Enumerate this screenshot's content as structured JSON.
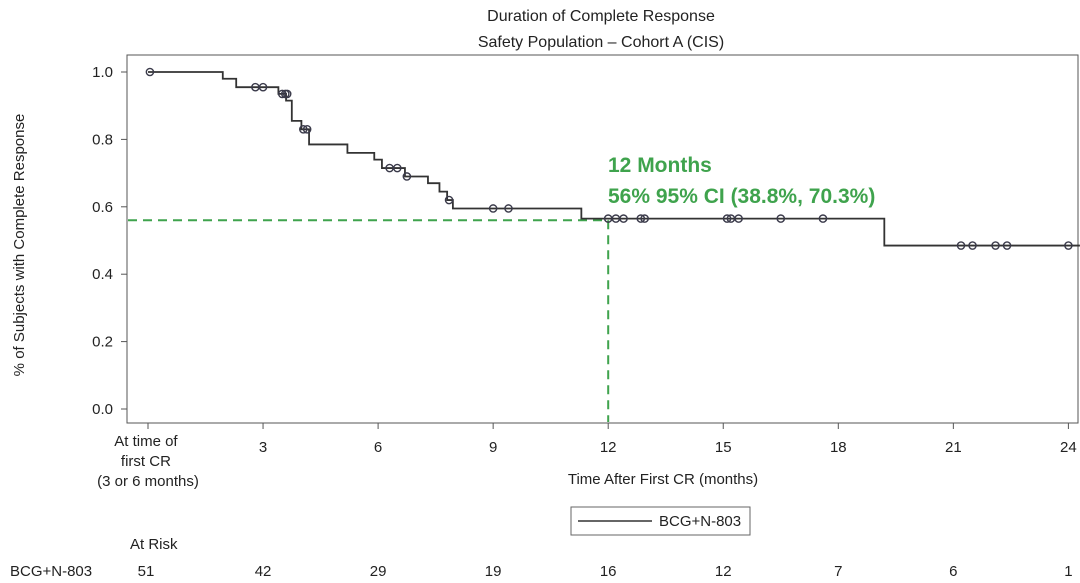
{
  "chart_data": {
    "type": "line",
    "title": "Duration of Complete Response",
    "subtitle": "Safety Population – Cohort A (CIS)",
    "xlabel": "Time After First CR (months)",
    "ylabel": "% of Subjects with Complete Response",
    "xlim": [
      0,
      24.3
    ],
    "ylim": [
      0,
      1.0
    ],
    "x_ticks": [
      0,
      3,
      6,
      9,
      12,
      15,
      18,
      21,
      24
    ],
    "x_tick_labels": [
      "",
      "3",
      "6",
      "9",
      "12",
      "15",
      "18",
      "21",
      "24"
    ],
    "x_first_tick_label_lines": [
      "At time of",
      "first CR",
      "(3 or 6 months)"
    ],
    "y_ticks": [
      0.0,
      0.2,
      0.4,
      0.6,
      0.8,
      1.0
    ],
    "y_tick_labels": [
      "0.0",
      "0.2",
      "0.4",
      "0.6",
      "0.8",
      "1.0"
    ],
    "grid": false,
    "legend_position": "bottom-center",
    "series": [
      {
        "name": "BCG+N-803",
        "color": "#333333",
        "steps": [
          [
            0,
            1.0
          ],
          [
            1.95,
            0.98
          ],
          [
            2.3,
            0.955
          ],
          [
            3.4,
            0.935
          ],
          [
            3.6,
            0.915
          ],
          [
            3.75,
            0.855
          ],
          [
            4.0,
            0.83
          ],
          [
            4.2,
            0.785
          ],
          [
            5.2,
            0.76
          ],
          [
            5.9,
            0.74
          ],
          [
            6.1,
            0.715
          ],
          [
            6.7,
            0.69
          ],
          [
            7.3,
            0.67
          ],
          [
            7.6,
            0.645
          ],
          [
            7.8,
            0.62
          ],
          [
            7.95,
            0.595
          ],
          [
            11.3,
            0.565
          ],
          [
            19.2,
            0.485
          ],
          [
            24.3,
            0.485
          ]
        ],
        "censor_points": [
          [
            0.05,
            1.0
          ],
          [
            2.8,
            0.955
          ],
          [
            3.0,
            0.955
          ],
          [
            3.5,
            0.935
          ],
          [
            3.58,
            0.935
          ],
          [
            3.63,
            0.935
          ],
          [
            4.05,
            0.83
          ],
          [
            4.15,
            0.83
          ],
          [
            6.3,
            0.715
          ],
          [
            6.5,
            0.715
          ],
          [
            6.75,
            0.69
          ],
          [
            7.85,
            0.62
          ],
          [
            9.0,
            0.595
          ],
          [
            9.4,
            0.595
          ],
          [
            12.0,
            0.565
          ],
          [
            12.2,
            0.565
          ],
          [
            12.4,
            0.565
          ],
          [
            12.85,
            0.565
          ],
          [
            12.95,
            0.565
          ],
          [
            15.1,
            0.565
          ],
          [
            15.2,
            0.565
          ],
          [
            15.4,
            0.565
          ],
          [
            16.5,
            0.565
          ],
          [
            17.6,
            0.565
          ],
          [
            21.2,
            0.485
          ],
          [
            21.5,
            0.485
          ],
          [
            22.1,
            0.485
          ],
          [
            22.4,
            0.485
          ],
          [
            24.0,
            0.485
          ]
        ]
      }
    ],
    "reference_lines": {
      "color": "#3fa34d",
      "x": 12,
      "y": 0.56
    },
    "annotation": {
      "line1": "12 Months",
      "line2": "56% 95% CI (38.8%, 70.3%)",
      "color": "#3fa34d"
    },
    "risk_table": {
      "header": "At Risk",
      "row_label": "BCG+N-803",
      "times": [
        0,
        3,
        6,
        9,
        12,
        15,
        18,
        21,
        24
      ],
      "counts": [
        "51",
        "42",
        "29",
        "19",
        "16",
        "12",
        "7",
        "6",
        "1"
      ]
    }
  }
}
